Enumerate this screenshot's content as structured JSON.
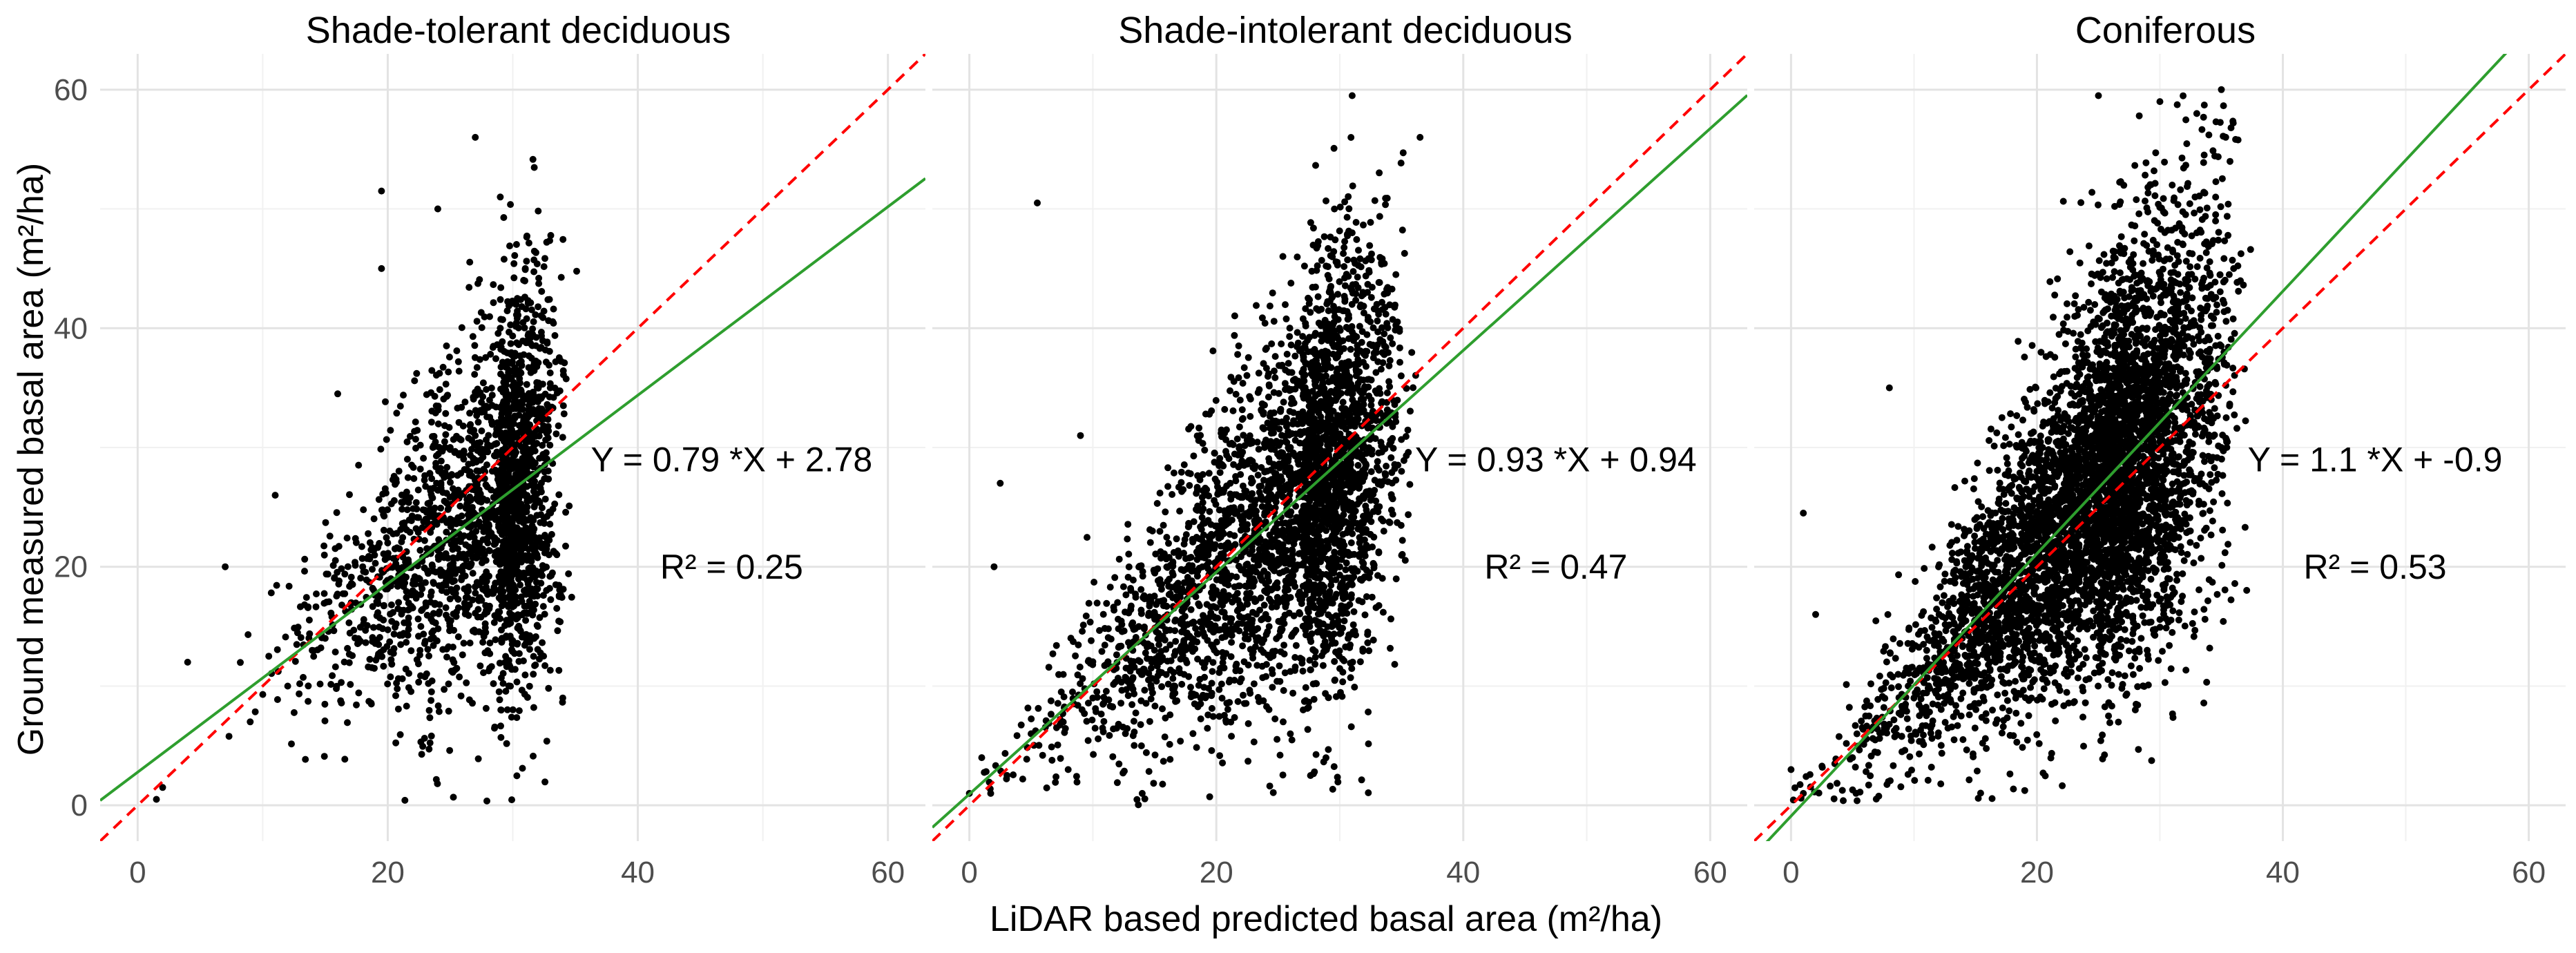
{
  "chart_data": {
    "type": "scatter",
    "xlabel": "LiDAR based predicted basal area (m²/ha)",
    "ylabel": "Ground measured basal area (m²/ha)",
    "xlim": [
      -3,
      63
    ],
    "ylim": [
      -3,
      63
    ],
    "xticks": [
      0,
      20,
      40,
      60
    ],
    "yticks": [
      0,
      20,
      40,
      60
    ],
    "xtick_labels": [
      "0",
      "20",
      "40",
      "60"
    ],
    "ytick_labels": [
      "0",
      "20",
      "40",
      "60"
    ],
    "grid": true,
    "reference_line": {
      "slope": 1,
      "intercept": 0,
      "style": "red dashed 1:1 line"
    },
    "panels": [
      {
        "title": "Shade-tolerant deciduous",
        "equation": "Y = 0.79 *X + 2.78",
        "r2": "R² = 0.25",
        "fit": {
          "slope": 0.79,
          "intercept": 2.78
        },
        "approx_point_count": 2200,
        "points_sample": [
          [
            27,
            56
          ],
          [
            19.5,
            51.5
          ],
          [
            24,
            50
          ],
          [
            29,
            51
          ],
          [
            19.5,
            45
          ],
          [
            16,
            34.5
          ],
          [
            7,
            20
          ],
          [
            4,
            12
          ],
          [
            11,
            26
          ],
          [
            34,
            9
          ],
          [
            2,
            1.5
          ],
          [
            1.5,
            0.5
          ],
          [
            30,
            30
          ],
          [
            31,
            25
          ],
          [
            28,
            22
          ],
          [
            32,
            28
          ],
          [
            26,
            20
          ],
          [
            33,
            35
          ],
          [
            29,
            40
          ],
          [
            31,
            45
          ],
          [
            22,
            18
          ],
          [
            25,
            24
          ],
          [
            12,
            10
          ],
          [
            9,
            7
          ],
          [
            15,
            14
          ],
          [
            18,
            20
          ],
          [
            20,
            22
          ],
          [
            27,
            31
          ],
          [
            30,
            18
          ],
          [
            32,
            15
          ]
        ]
      },
      {
        "title": "Shade-intolerant deciduous",
        "equation": "Y = 0.93 *X + 0.94",
        "r2": "R² = 0.47",
        "fit": {
          "slope": 0.93,
          "intercept": 0.94
        },
        "approx_point_count": 3300,
        "points_sample": [
          [
            31,
            59.5
          ],
          [
            36.5,
            56
          ],
          [
            5.5,
            50.5
          ],
          [
            2.5,
            27
          ],
          [
            9,
            31
          ],
          [
            2,
            20
          ],
          [
            0,
            1
          ],
          [
            1,
            4
          ],
          [
            14,
            1
          ],
          [
            30,
            30
          ],
          [
            28,
            25
          ],
          [
            32,
            35
          ],
          [
            25,
            22
          ],
          [
            20,
            18
          ],
          [
            15,
            13
          ],
          [
            10,
            9
          ],
          [
            5,
            6
          ],
          [
            33,
            42
          ],
          [
            31,
            48
          ],
          [
            29,
            38
          ],
          [
            26,
            30
          ],
          [
            22,
            25
          ],
          [
            18,
            14
          ],
          [
            12,
            17
          ],
          [
            35,
            28
          ],
          [
            24,
            16
          ],
          [
            8,
            3
          ],
          [
            30,
            20
          ],
          [
            27,
            33
          ],
          [
            33,
            25
          ]
        ]
      },
      {
        "title": "Coniferous",
        "equation": "Y = 1.1 *X + -0.9",
        "r2": "R² = 0.53",
        "fit": {
          "slope": 1.1,
          "intercept": -0.9
        },
        "approx_point_count": 5000,
        "points_sample": [
          [
            25,
            59.5
          ],
          [
            30,
            59
          ],
          [
            33,
            58
          ],
          [
            35,
            60
          ],
          [
            1,
            24.5
          ],
          [
            8,
            35
          ],
          [
            2,
            16
          ],
          [
            0,
            3
          ],
          [
            1,
            1
          ],
          [
            28,
            30
          ],
          [
            30,
            35
          ],
          [
            32,
            40
          ],
          [
            25,
            25
          ],
          [
            22,
            20
          ],
          [
            18,
            17
          ],
          [
            15,
            12
          ],
          [
            10,
            9
          ],
          [
            5,
            4
          ],
          [
            33,
            48
          ],
          [
            31,
            52
          ],
          [
            29,
            44
          ],
          [
            26,
            36
          ],
          [
            20,
            28
          ],
          [
            12,
            20
          ],
          [
            35,
            30
          ],
          [
            24,
            15
          ],
          [
            28,
            8
          ],
          [
            36,
            45
          ],
          [
            27,
            22
          ],
          [
            34,
            38
          ]
        ]
      }
    ]
  }
}
